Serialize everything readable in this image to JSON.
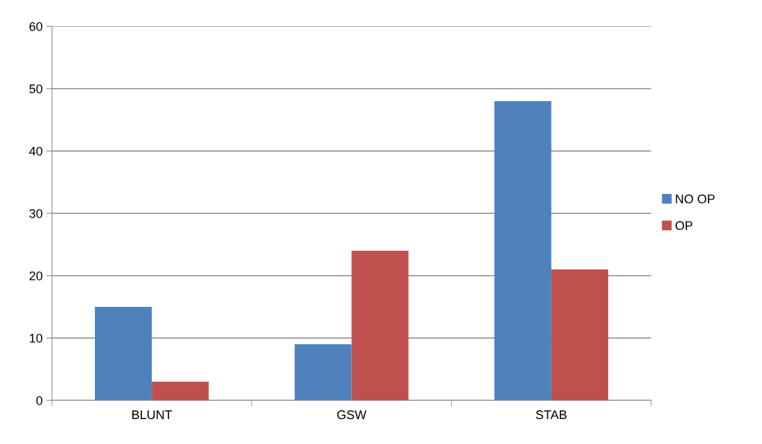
{
  "chart_data": {
    "type": "bar",
    "categories": [
      "BLUNT",
      "GSW",
      "STAB"
    ],
    "series": [
      {
        "name": "NO OP",
        "color": "#4f81bd",
        "values": [
          15,
          9,
          48
        ]
      },
      {
        "name": "OP",
        "color": "#c0504d",
        "values": [
          3,
          24,
          21
        ]
      }
    ],
    "ylim": [
      0,
      60
    ],
    "yticks": [
      0,
      10,
      20,
      30,
      40,
      50,
      60
    ],
    "grid": "y",
    "legend": "right"
  }
}
